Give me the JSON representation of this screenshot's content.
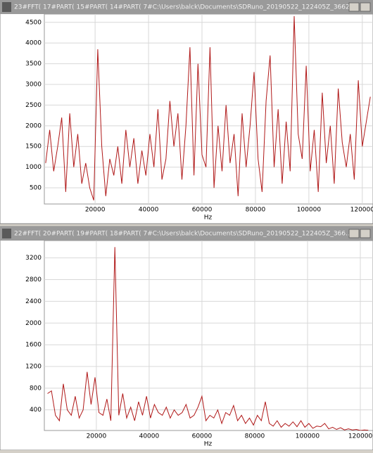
{
  "chart_data": [
    {
      "type": "line",
      "title": "23#FFT( 17#PART( 15#PART( 14#PART( 7#C:\\Users\\balck\\Documents\\SDRuno_20190522_122405Z_3662...",
      "x_label": "Hz",
      "x": [
        1500,
        3000,
        4500,
        6000,
        7500,
        9000,
        10500,
        12000,
        13500,
        15000,
        16500,
        18000,
        19500,
        21000,
        22500,
        24000,
        25500,
        27000,
        28500,
        30000,
        31500,
        33000,
        34500,
        36000,
        37500,
        39000,
        40500,
        42000,
        43500,
        45000,
        46500,
        48000,
        49500,
        51000,
        52500,
        54000,
        55500,
        57000,
        58500,
        60000,
        61500,
        63000,
        64500,
        66000,
        67500,
        69000,
        70500,
        72000,
        73500,
        75000,
        76500,
        78000,
        79500,
        81000,
        82500,
        84000,
        85500,
        87000,
        88500,
        90000,
        91500,
        93000,
        94500,
        96000,
        97500,
        99000,
        100500,
        102000,
        103500,
        105000,
        106500,
        108000,
        109500,
        111000,
        112500,
        114000,
        115500,
        117000,
        118500,
        120000,
        121500,
        123000
      ],
      "series": [
        {
          "name": "FFT",
          "color": "#b01818",
          "values": [
            1100,
            1900,
            900,
            1500,
            2200,
            400,
            2300,
            1000,
            1800,
            600,
            1100,
            500,
            200,
            3850,
            1500,
            300,
            1200,
            800,
            1500,
            600,
            1900,
            1000,
            1700,
            600,
            1400,
            800,
            1800,
            1000,
            2400,
            700,
            1200,
            2600,
            1500,
            2300,
            700,
            2000,
            3900,
            800,
            3500,
            1300,
            1000,
            3900,
            500,
            2000,
            900,
            2500,
            1100,
            1800,
            300,
            2300,
            1000,
            2000,
            3300,
            1200,
            400,
            2600,
            3700,
            1000,
            2400,
            600,
            2100,
            900,
            4650,
            1800,
            1200,
            3450,
            900,
            1900,
            400,
            2800,
            1100,
            2000,
            600,
            2900,
            1600,
            1000,
            1800,
            700,
            3100,
            1500,
            2100,
            2700
          ]
        }
      ],
      "xlim": [
        1000,
        124000
      ],
      "ylim": [
        110,
        4700
      ],
      "xticks": [
        20000,
        40000,
        60000,
        80000,
        100000,
        120000
      ],
      "yticks": [
        500,
        1000,
        1500,
        2000,
        2500,
        3000,
        3500,
        4000,
        4500
      ],
      "grid": true
    },
    {
      "type": "line",
      "title": "22#FFT( 20#PART( 19#PART( 18#PART( 7#C:\\Users\\balck\\Documents\\SDRuno_20190522_122405Z_366...",
      "x_label": "Hz",
      "x": [
        1500,
        3000,
        4500,
        6000,
        7500,
        9000,
        10500,
        12000,
        13500,
        15000,
        16500,
        18000,
        19500,
        21000,
        22500,
        24000,
        25500,
        27000,
        28500,
        30000,
        31500,
        33000,
        34500,
        36000,
        37500,
        39000,
        40500,
        42000,
        43500,
        45000,
        46500,
        48000,
        49500,
        51000,
        52500,
        54000,
        55500,
        57000,
        58500,
        60000,
        61500,
        63000,
        64500,
        66000,
        67500,
        69000,
        70500,
        72000,
        73500,
        75000,
        76500,
        78000,
        79500,
        81000,
        82500,
        84000,
        85500,
        87000,
        88500,
        90000,
        91500,
        93000,
        94500,
        96000,
        97500,
        99000,
        100500,
        102000,
        103500,
        105000,
        106500,
        108000,
        109500,
        111000,
        112500,
        114000,
        115500,
        117000,
        118500,
        120000,
        121500,
        123000
      ],
      "series": [
        {
          "name": "FFT",
          "color": "#b01818",
          "values": [
            700,
            750,
            300,
            200,
            880,
            400,
            300,
            650,
            250,
            400,
            1100,
            500,
            1000,
            350,
            300,
            600,
            200,
            3400,
            300,
            700,
            250,
            450,
            200,
            550,
            300,
            650,
            250,
            500,
            350,
            300,
            450,
            250,
            400,
            300,
            350,
            500,
            250,
            300,
            450,
            650,
            200,
            300,
            250,
            400,
            150,
            350,
            300,
            480,
            200,
            300,
            150,
            250,
            120,
            300,
            200,
            550,
            150,
            100,
            200,
            80,
            150,
            100,
            180,
            90,
            200,
            80,
            150,
            60,
            100,
            90,
            150,
            50,
            80,
            40,
            70,
            30,
            50,
            30,
            40,
            20,
            30,
            25
          ]
        }
      ],
      "xlim": [
        300,
        124800
      ],
      "ylim": [
        20,
        3520
      ],
      "xticks": [
        20000,
        40000,
        60000,
        80000,
        100000,
        120000
      ],
      "yticks": [
        400,
        800,
        1200,
        1600,
        2000,
        2400,
        2800,
        3200
      ],
      "grid": true
    }
  ]
}
